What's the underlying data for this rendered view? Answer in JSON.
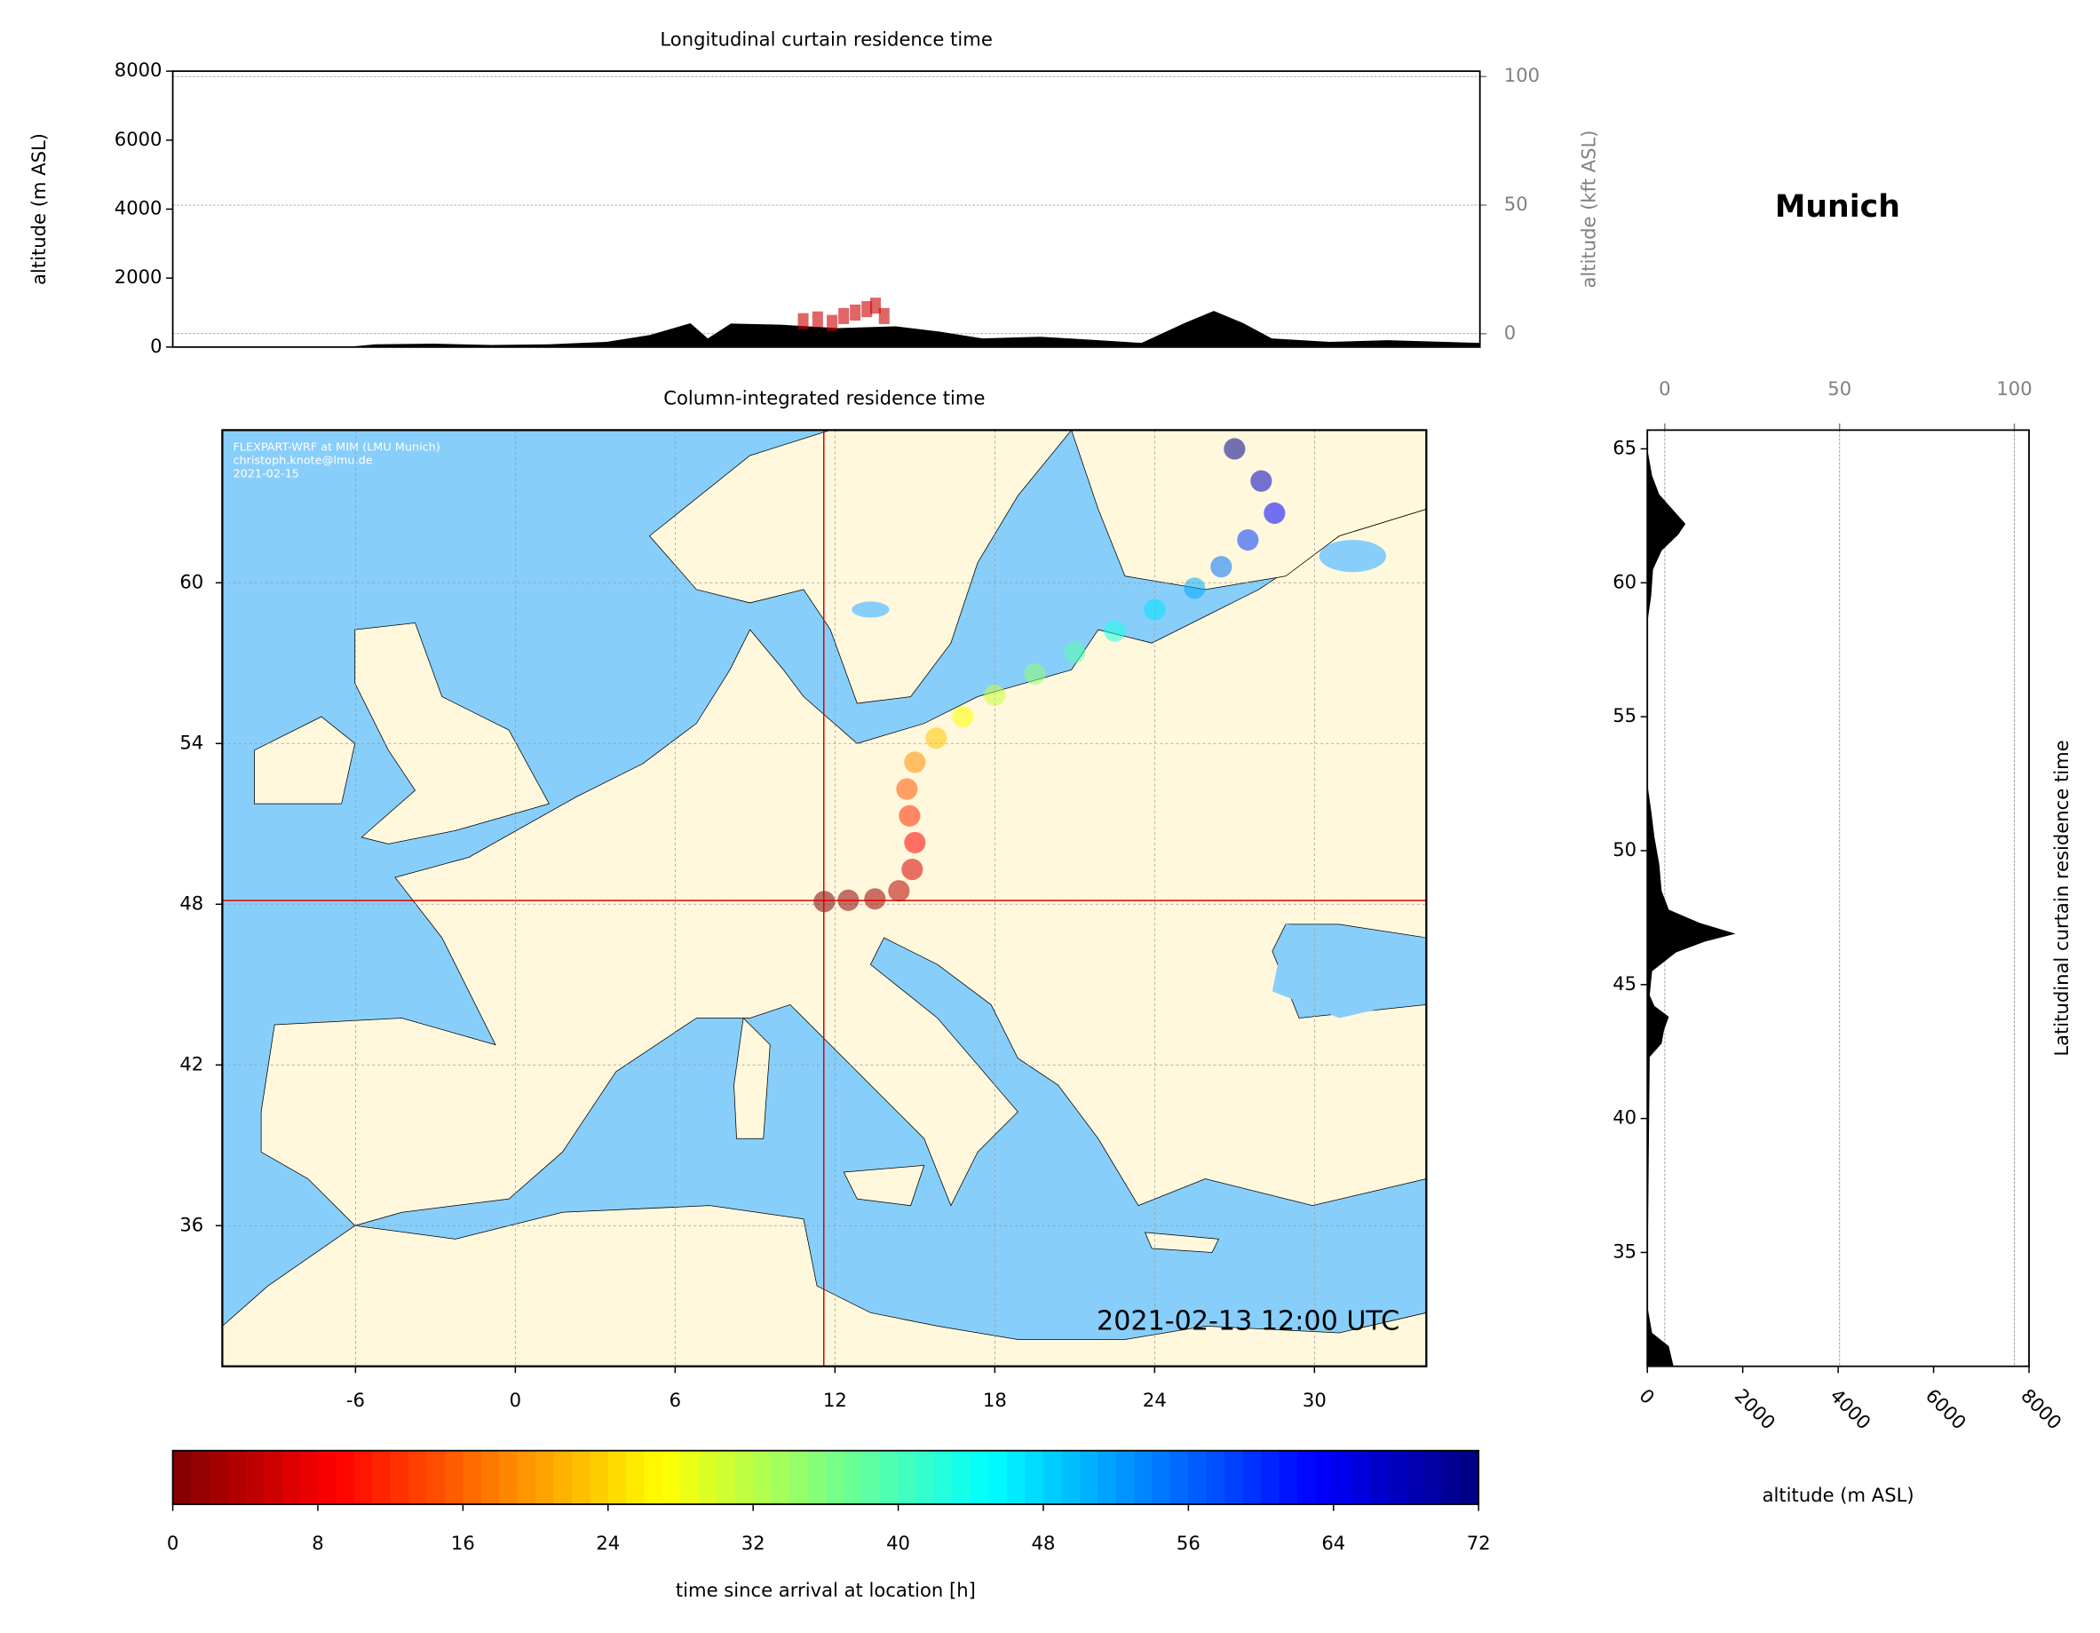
{
  "chart_data": [
    {
      "type": "area",
      "title": "Longitudinal curtain residence time",
      "ylabel": "altitude (m ASL)",
      "y2label": "altitude (kft ASL)",
      "xlim": [
        -11,
        34.2
      ],
      "ylim": [
        0,
        8000
      ],
      "yticks": [
        0,
        2000,
        4000,
        6000,
        8000
      ],
      "y2lim": [
        -5.2,
        102.1
      ],
      "y2ticks": [
        0,
        50,
        100
      ],
      "x": [
        -11,
        -8,
        -5,
        -4,
        -2,
        0,
        2,
        4,
        5.5,
        6.9,
        7.5,
        8.3,
        10,
        12,
        14,
        15.5,
        17,
        19,
        21,
        22.5,
        24,
        25,
        26,
        27,
        29,
        31,
        34.2
      ],
      "values": [
        0,
        0,
        0,
        80,
        100,
        60,
        80,
        150,
        350,
        690,
        250,
        680,
        650,
        550,
        600,
        450,
        250,
        300,
        200,
        120,
        700,
        1050,
        700,
        250,
        150,
        200,
        120
      ],
      "color": "#000000",
      "particles": {
        "x": [
          10.8,
          11.3,
          11.8,
          12.2,
          12.6,
          13.0,
          13.3,
          13.6
        ],
        "values": [
          750,
          800,
          700,
          900,
          1000,
          1100,
          1200,
          900
        ],
        "color": "#cc0000"
      }
    },
    {
      "type": "map",
      "title": "Column-integrated residence time",
      "xlim": [
        -11,
        34.2
      ],
      "ylim": [
        30.75,
        65.7
      ],
      "xticks": [
        -6,
        0,
        6,
        12,
        18,
        24,
        30
      ],
      "yticks": [
        36,
        42,
        48,
        54,
        60
      ],
      "site": {
        "x": 11.58,
        "y": 48.14
      },
      "trajectory": {
        "x": [
          11.6,
          12.5,
          13.5,
          14.4,
          14.9,
          15.0,
          14.8,
          14.7,
          15.0,
          15.8,
          16.8,
          18.0,
          19.5,
          21.0,
          22.5,
          24.0,
          25.5,
          26.5,
          27.5,
          28.5,
          28.0,
          27.0
        ],
        "y": [
          48.1,
          48.15,
          48.2,
          48.5,
          49.3,
          50.3,
          51.3,
          52.3,
          53.3,
          54.2,
          55.0,
          55.8,
          56.6,
          57.4,
          58.2,
          59.0,
          59.8,
          60.6,
          61.6,
          62.6,
          63.8,
          65.0
        ],
        "values": [
          0,
          1,
          2,
          4,
          6,
          9,
          12,
          15,
          19,
          23,
          27,
          31,
          35,
          39,
          43,
          47,
          51,
          55,
          59,
          63,
          67,
          71
        ]
      },
      "credits": [
        "FLEXPART-WRF at MIM (LMU Munich)",
        "christoph.knote@lmu.de",
        "2021-02-15"
      ],
      "timestamp": "2021-02-13 12:00 UTC",
      "land_color": "#fff8dc",
      "sea_color": "#87cefa"
    },
    {
      "type": "area-horizontal",
      "title": "Munich",
      "xlabel": "altitude (m ASL)",
      "ylabel": "Latitudinal curtain residence time",
      "xlim": [
        0,
        8000
      ],
      "xticks": [
        0,
        2000,
        4000,
        6000,
        8000
      ],
      "x2lim": [
        -5,
        104.2
      ],
      "x2ticks": [
        0,
        50,
        100
      ],
      "ylim": [
        30.75,
        65.7
      ],
      "yticks": [
        35,
        40,
        45,
        50,
        55,
        60,
        65
      ],
      "y": [
        30.75,
        31.5,
        32,
        33,
        42.3,
        42.8,
        43.3,
        43.8,
        44.2,
        44.6,
        45.5,
        46.2,
        46.6,
        46.9,
        47.3,
        47.8,
        48.5,
        49.5,
        50.5,
        51.5,
        52.5,
        58.5,
        59.5,
        60.5,
        61.2,
        61.8,
        62.2,
        62.7,
        63.3,
        64,
        65,
        65.7
      ],
      "values": [
        550,
        450,
        100,
        0,
        50,
        300,
        350,
        450,
        150,
        50,
        100,
        600,
        1200,
        1850,
        1100,
        450,
        300,
        250,
        150,
        80,
        0,
        0,
        80,
        120,
        300,
        650,
        800,
        550,
        250,
        100,
        0,
        0
      ],
      "color": "#000000"
    },
    {
      "type": "colorbar",
      "xlabel": "time since arrival at location [h]",
      "xlim": [
        0,
        72
      ],
      "xticks": [
        0,
        8,
        16,
        24,
        32,
        40,
        48,
        56,
        64,
        72
      ],
      "colormap": "jet_r"
    }
  ]
}
